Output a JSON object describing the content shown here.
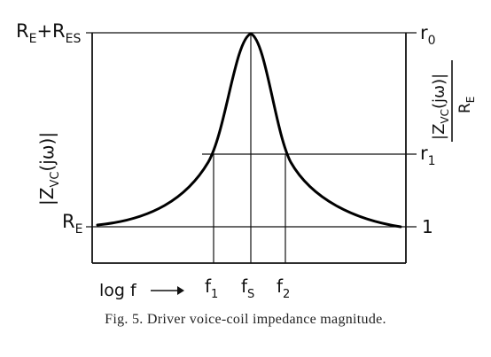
{
  "labels": {
    "left_top": "R",
    "left_top_sub1": "E",
    "left_top_plus": "+R",
    "left_top_sub2": "ES",
    "left_bottom": "R",
    "left_bottom_sub": "E",
    "left_axis_main": "|Z",
    "left_axis_sub": "VC",
    "left_axis_arg": "(jω)|",
    "right_top": "r",
    "right_top_sub": "0",
    "right_mid": "r",
    "right_mid_sub": "1",
    "right_bottom": "1",
    "right_axis_num_main": "|Z",
    "right_axis_num_sub": "VC",
    "right_axis_num_arg": "(jω)|",
    "right_axis_den": "R",
    "right_axis_den_sub": "E",
    "x_f1": "f",
    "x_f1_sub": "1",
    "x_fs": "f",
    "x_fs_sub": "S",
    "x_f2": "f",
    "x_f2_sub": "2",
    "x_axis": "log f",
    "x_arrow": "⟶"
  },
  "caption": "Fig. 5. Driver voice-coil impedance magnitude."
}
